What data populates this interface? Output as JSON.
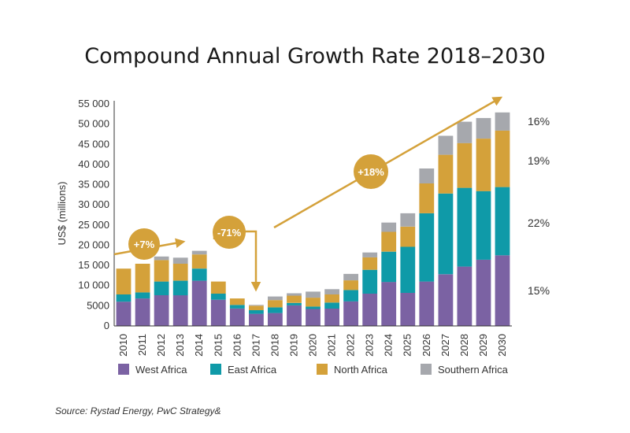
{
  "chart_data": {
    "type": "bar",
    "stacked": true,
    "title": "Compound Annual Growth Rate 2018–2030",
    "ylabel": "US$ (millions)",
    "xlabel": "",
    "ylim": [
      0,
      55000
    ],
    "yticks": [
      "55 000",
      "50 000",
      "45 000",
      "40 000",
      "35 000",
      "30 000",
      "25 000",
      "20 000",
      "15 000",
      "10 000",
      "5000",
      "0"
    ],
    "ytick_values": [
      55000,
      50000,
      45000,
      40000,
      35000,
      30000,
      25000,
      20000,
      15000,
      10000,
      5000,
      0
    ],
    "categories": [
      "2010",
      "2011",
      "2012",
      "2013",
      "2014",
      "2015",
      "2016",
      "2017",
      "2018",
      "2019",
      "2020",
      "2021",
      "2022",
      "2023",
      "2024",
      "2025",
      "2026",
      "2027",
      "2028",
      "2029",
      "2030"
    ],
    "series": [
      {
        "name": "West Africa",
        "color": "#7b62a3",
        "values": [
          6000,
          6800,
          7600,
          7600,
          11200,
          6500,
          4300,
          3000,
          3200,
          5100,
          4200,
          4300,
          6100,
          8000,
          10900,
          8200,
          11000,
          12800,
          14700,
          16400,
          17500
        ]
      },
      {
        "name": "East Africa",
        "color": "#0f9aa8",
        "values": [
          1800,
          1500,
          3400,
          3600,
          3000,
          1500,
          900,
          900,
          1400,
          600,
          600,
          1500,
          2800,
          5900,
          7500,
          11400,
          16900,
          20000,
          19500,
          17000,
          16900
        ]
      },
      {
        "name": "North Africa",
        "color": "#d4a13a",
        "values": [
          6400,
          7100,
          5300,
          4200,
          3500,
          3000,
          1600,
          1100,
          1800,
          1800,
          2200,
          2000,
          2400,
          3100,
          4900,
          5000,
          7400,
          9600,
          11100,
          13000,
          14000
        ]
      },
      {
        "name": "Southern Africa",
        "color": "#a6a8ad",
        "values": [
          0,
          0,
          900,
          1500,
          900,
          0,
          0,
          200,
          900,
          600,
          1500,
          1300,
          1600,
          1200,
          2300,
          3300,
          3700,
          4700,
          5300,
          5100,
          4500
        ]
      }
    ],
    "annotations": {
      "growth_2010_2013": "+7%",
      "decline_2014_2017": "-71%",
      "growth_2018_2030": "+18%",
      "right_shares": [
        "16%",
        "19%",
        "22%",
        "15%"
      ]
    },
    "legend_position": "bottom",
    "source": "Source: Rystad Energy, PwC Strategy&"
  },
  "colors": {
    "arrow": "#d4a13a",
    "badge": "#d4a13a",
    "axis": "#333333"
  }
}
